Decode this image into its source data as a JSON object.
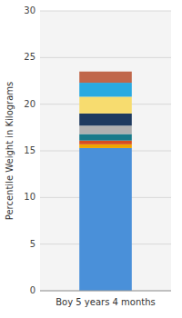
{
  "chart_data": {
    "type": "bar",
    "stacked": true,
    "grid": true,
    "categories": [
      "Boy 5 years 4 months"
    ],
    "series": [
      {
        "color": "#4A90D9",
        "values": [
          15.3
        ]
      },
      {
        "color": "#F0A500",
        "values": [
          0.4
        ]
      },
      {
        "color": "#D94E1F",
        "values": [
          0.4
        ]
      },
      {
        "color": "#1A7A8A",
        "values": [
          0.7
        ]
      },
      {
        "color": "#B0B0B0",
        "values": [
          0.9
        ]
      },
      {
        "color": "#1E3A5F",
        "values": [
          1.3
        ]
      },
      {
        "color": "#F7DC6F",
        "values": [
          1.8
        ]
      },
      {
        "color": "#29AAE1",
        "values": [
          1.5
        ]
      },
      {
        "color": "#C0664A",
        "values": [
          1.2
        ]
      }
    ],
    "ylabel": "Percentile Weight in Kilograms",
    "ylim": [
      0,
      30
    ],
    "yticks": [
      0,
      5,
      10,
      15,
      20,
      25,
      30
    ]
  }
}
